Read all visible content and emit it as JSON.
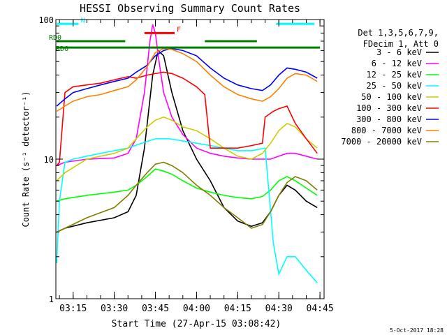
{
  "chart_data": {
    "type": "line",
    "title": "HESSI Observing Summary Count Rates",
    "xlabel": "Start Time (27-Apr-15 03:08:42)",
    "ylabel": "Count Rate (s⁻¹ detector⁻¹)",
    "y_scale": "log",
    "ylim": [
      1,
      100
    ],
    "xlim": [
      "03:08:42",
      "04:46:30"
    ],
    "x_tick_labels": [
      "03:15",
      "03:30",
      "03:45",
      "04:00",
      "04:15",
      "04:30",
      "04:45"
    ],
    "y_tick_labels": [
      "1",
      "10",
      "100"
    ],
    "legend_header": [
      "Det 1,3,5,6,7,9,",
      "FDecim 1, Att 0"
    ],
    "legend_position": "right",
    "footer": "5-Oct-2017 18:28",
    "grid": false,
    "series": [
      {
        "name": "3 - 6 keV",
        "color": "#000000",
        "x": [
          "03:09",
          "03:12",
          "03:20",
          "03:30",
          "03:35",
          "03:38",
          "03:41",
          "03:44",
          "03:46",
          "03:48",
          "03:51",
          "03:55",
          "04:00",
          "04:05",
          "04:10",
          "04:15",
          "04:20",
          "04:24",
          "04:27",
          "04:30",
          "04:33",
          "04:36",
          "04:40",
          "04:44"
        ],
        "y": [
          3.0,
          3.2,
          3.5,
          3.8,
          4.2,
          5.5,
          12,
          40,
          60,
          55,
          30,
          16,
          10,
          7,
          4.5,
          3.6,
          3.3,
          3.5,
          4.2,
          5.5,
          6.5,
          6.0,
          5.0,
          4.5
        ]
      },
      {
        "name": "6 - 12 keV",
        "color": "#ff00ff",
        "x": [
          "03:09",
          "03:12",
          "03:20",
          "03:30",
          "03:35",
          "03:38",
          "03:41",
          "03:43",
          "03:44",
          "03:45",
          "03:46",
          "03:48",
          "03:51",
          "03:55",
          "04:00",
          "04:05",
          "04:10",
          "04:15",
          "04:20",
          "04:24",
          "04:27",
          "04:30",
          "04:33",
          "04:36",
          "04:40",
          "04:44"
        ],
        "y": [
          9.0,
          9.5,
          10,
          10.2,
          11,
          14,
          30,
          70,
          92,
          80,
          55,
          30,
          20,
          15,
          12,
          11,
          10.5,
          10.2,
          10,
          10,
          10,
          10.5,
          11,
          11,
          10.5,
          10
        ]
      },
      {
        "name": "12 - 25 keV",
        "color": "#00ff00",
        "x": [
          "03:09",
          "03:12",
          "03:20",
          "03:30",
          "03:35",
          "03:38",
          "03:42",
          "03:45",
          "03:48",
          "03:51",
          "03:55",
          "04:00",
          "04:05",
          "04:10",
          "04:15",
          "04:20",
          "04:24",
          "04:27",
          "04:30",
          "04:33",
          "04:36",
          "04:40",
          "04:44"
        ],
        "y": [
          5.0,
          5.2,
          5.5,
          5.8,
          6.0,
          6.5,
          7.5,
          8.5,
          8.2,
          7.8,
          7.0,
          6.2,
          5.8,
          5.5,
          5.3,
          5.2,
          5.4,
          6.0,
          7.0,
          7.5,
          7.0,
          6.2,
          5.5
        ]
      },
      {
        "name": "25 - 50 keV",
        "color": "#00ffff",
        "x": [
          "03:09",
          "03:10",
          "03:12",
          "03:15",
          "03:20",
          "03:25",
          "03:30",
          "03:35",
          "03:40",
          "03:45",
          "03:50",
          "03:55",
          "04:00",
          "04:05",
          "04:10",
          "04:15",
          "04:20",
          "04:25",
          "04:28",
          "04:30",
          "04:33",
          "04:36",
          "04:40",
          "04:44"
        ],
        "y": [
          1.8,
          5.0,
          9.5,
          10,
          10.5,
          11,
          11.5,
          12,
          13,
          14,
          14,
          13.5,
          13,
          12.5,
          12,
          11.5,
          11.5,
          12,
          2.5,
          1.5,
          2.0,
          2.0,
          1.6,
          1.3
        ]
      },
      {
        "name": "50 - 100 keV",
        "color": "#cccc00",
        "x": [
          "03:09",
          "03:12",
          "03:20",
          "03:30",
          "03:35",
          "03:38",
          "03:42",
          "03:45",
          "03:48",
          "03:51",
          "03:55",
          "04:00",
          "04:05",
          "04:10",
          "04:15",
          "04:20",
          "04:24",
          "04:27",
          "04:30",
          "04:33",
          "04:36",
          "04:40",
          "04:44"
        ],
        "y": [
          7.0,
          8.0,
          10,
          11,
          12,
          14,
          17,
          19,
          20,
          19,
          17,
          16,
          14,
          12,
          10.5,
          10,
          11,
          13,
          16,
          18,
          17,
          14,
          12
        ]
      },
      {
        "name": "100 - 300 keV",
        "color": "#ff0000",
        "x": [
          "03:09",
          "03:10",
          "03:12",
          "03:15",
          "03:20",
          "03:25",
          "03:30",
          "03:35",
          "03:38",
          "03:42",
          "03:45",
          "03:48",
          "03:51",
          "03:55",
          "04:00",
          "04:03",
          "04:05",
          "04:10",
          "04:15",
          "04:20",
          "04:24",
          "04:25",
          "04:28",
          "04:30",
          "04:33",
          "04:36",
          "04:40",
          "04:44"
        ],
        "y": [
          9.0,
          9.5,
          30,
          33,
          34,
          35,
          37,
          39,
          38,
          40,
          41,
          42,
          41,
          38,
          33,
          29,
          12,
          12,
          12,
          12.5,
          13,
          20,
          22,
          23,
          24,
          18,
          14,
          11
        ]
      },
      {
        "name": "300 - 800 keV",
        "color": "#0000ff",
        "x": [
          "03:09",
          "03:12",
          "03:15",
          "03:20",
          "03:25",
          "03:30",
          "03:35",
          "03:38",
          "03:42",
          "03:45",
          "03:48",
          "03:51",
          "03:55",
          "04:00",
          "04:05",
          "04:10",
          "04:15",
          "04:20",
          "04:24",
          "04:27",
          "04:30",
          "04:33",
          "04:36",
          "04:40",
          "04:44"
        ],
        "y": [
          24,
          27,
          30,
          32,
          34,
          36,
          38,
          42,
          47,
          55,
          60,
          62,
          60,
          55,
          45,
          38,
          34,
          32,
          31,
          34,
          40,
          45,
          44,
          42,
          38
        ]
      },
      {
        "name": "800 - 7000 keV",
        "color": "#ff8000",
        "x": [
          "03:09",
          "03:12",
          "03:15",
          "03:20",
          "03:25",
          "03:30",
          "03:35",
          "03:38",
          "03:42",
          "03:45",
          "03:48",
          "03:51",
          "03:55",
          "04:00",
          "04:05",
          "04:10",
          "04:15",
          "04:20",
          "04:24",
          "04:27",
          "04:30",
          "04:33",
          "04:36",
          "04:40",
          "04:44"
        ],
        "y": [
          22,
          24,
          26,
          28,
          29,
          31,
          33,
          37,
          46,
          58,
          62,
          61,
          57,
          50,
          40,
          33,
          29,
          27,
          26,
          28,
          32,
          38,
          41,
          40,
          36
        ]
      },
      {
        "name": "7000 - 20000 keV",
        "color": "#808000",
        "x": [
          "03:09",
          "03:12",
          "03:20",
          "03:30",
          "03:35",
          "03:38",
          "03:42",
          "03:45",
          "03:48",
          "03:51",
          "03:55",
          "04:00",
          "04:05",
          "04:10",
          "04:15",
          "04:20",
          "04:24",
          "04:27",
          "04:30",
          "04:33",
          "04:36",
          "04:40",
          "04:44"
        ],
        "y": [
          3.0,
          3.2,
          3.8,
          4.5,
          5.5,
          6.5,
          8.0,
          9.2,
          9.5,
          9.0,
          8.0,
          6.5,
          5.5,
          4.5,
          3.8,
          3.2,
          3.4,
          4.2,
          5.5,
          6.8,
          7.5,
          7.0,
          6.0
        ]
      }
    ],
    "attenuator_bars": [
      {
        "label": "N",
        "color": "#00ffff",
        "x": [
          [
            "03:09",
            "03:17"
          ],
          [
            "04:29",
            "04:43"
          ]
        ],
        "y": 93
      },
      {
        "label": "F",
        "color": "#ff0000",
        "x": [
          [
            "03:41",
            "03:52"
          ]
        ],
        "y": 80
      },
      {
        "label": "RD0",
        "color": "#008000",
        "x": [
          [
            "03:09",
            "03:34"
          ],
          [
            "04:03",
            "04:22"
          ]
        ],
        "y": 70
      },
      {
        "label": "RD6",
        "color": "#008000",
        "x": [
          [
            "03:09",
            "04:45"
          ]
        ],
        "y": 63
      }
    ]
  }
}
